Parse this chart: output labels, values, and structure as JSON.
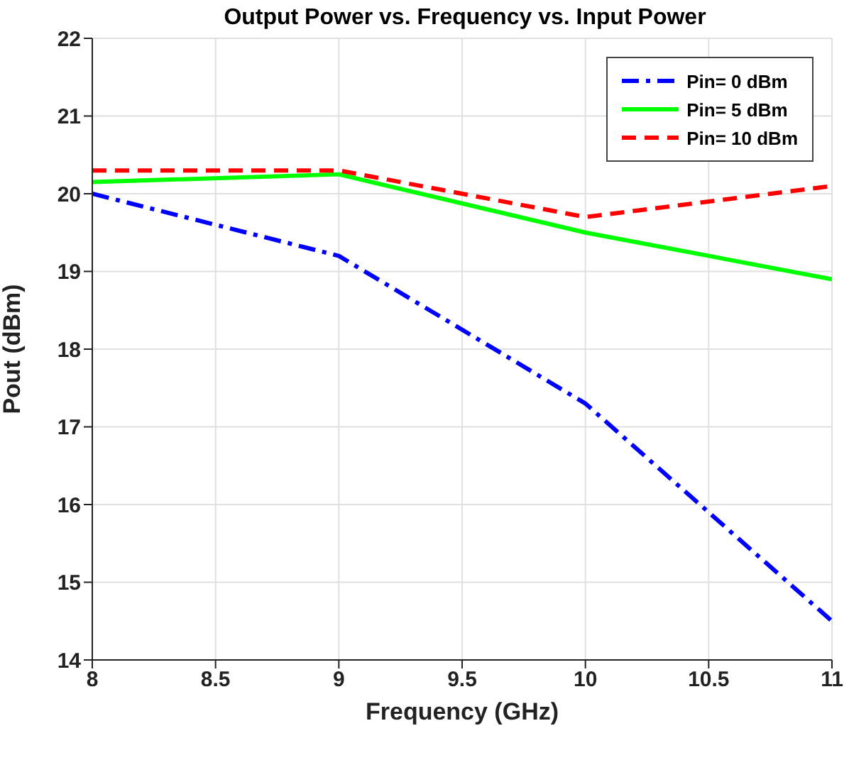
{
  "chart_data": {
    "type": "line",
    "title": "Output Power vs. Frequency vs. Input Power",
    "xlabel": "Frequency (GHz)",
    "ylabel": "Pout (dBm)",
    "x": [
      8,
      9,
      10,
      11
    ],
    "series": [
      {
        "name": "Pin= 0 dBm",
        "color": "#0000ff",
        "values": [
          20.0,
          19.2,
          17.3,
          14.5
        ],
        "line_style": "dashdot"
      },
      {
        "name": "Pin= 5 dBm",
        "color": "#00ff00",
        "values": [
          20.15,
          20.25,
          19.5,
          18.9
        ],
        "line_style": "solid"
      },
      {
        "name": "Pin= 10 dBm",
        "color": "#ff0000",
        "values": [
          20.3,
          20.3,
          19.7,
          20.1
        ],
        "line_style": "dashed"
      }
    ],
    "xlim": [
      8,
      11
    ],
    "xticks": [
      8,
      8.5,
      9,
      9.5,
      10,
      10.5,
      11
    ],
    "ylim": [
      14,
      22
    ],
    "yticks": [
      14,
      15,
      16,
      17,
      18,
      19,
      20,
      21,
      22
    ],
    "grid": true,
    "legend": "top right",
    "marker": "none"
  }
}
